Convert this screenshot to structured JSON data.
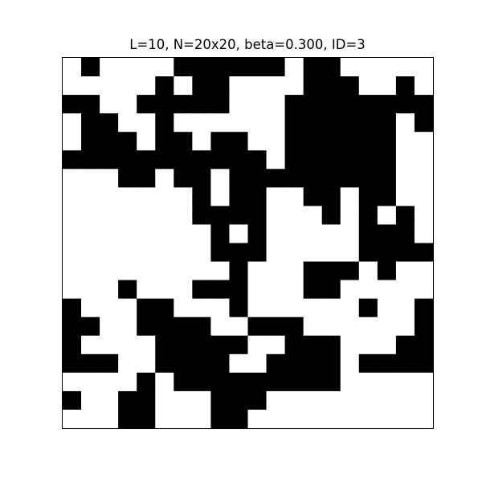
{
  "chart_data": {
    "type": "heatmap",
    "title": "L=10, N=20x20, beta=0.300, ID=3",
    "xlabel": "",
    "ylabel": "",
    "rows": 20,
    "cols": 20,
    "value_colors": {
      "0": "#ffffff",
      "1": "#000000"
    },
    "grid": [
      [
        0,
        1,
        0,
        0,
        0,
        0,
        1,
        1,
        1,
        1,
        1,
        1,
        0,
        1,
        1,
        0,
        0,
        0,
        0,
        0
      ],
      [
        0,
        0,
        0,
        0,
        0,
        1,
        0,
        1,
        1,
        0,
        0,
        0,
        0,
        1,
        1,
        1,
        0,
        0,
        1,
        0
      ],
      [
        1,
        1,
        0,
        0,
        1,
        1,
        1,
        1,
        1,
        0,
        0,
        0,
        1,
        1,
        1,
        1,
        1,
        1,
        1,
        1
      ],
      [
        0,
        1,
        1,
        0,
        0,
        1,
        0,
        0,
        0,
        0,
        0,
        0,
        1,
        1,
        1,
        1,
        1,
        1,
        0,
        1
      ],
      [
        0,
        1,
        1,
        1,
        0,
        1,
        1,
        0,
        1,
        1,
        0,
        0,
        1,
        1,
        1,
        1,
        1,
        1,
        0,
        0
      ],
      [
        1,
        1,
        1,
        1,
        1,
        1,
        1,
        1,
        1,
        1,
        1,
        0,
        1,
        1,
        1,
        1,
        1,
        1,
        0,
        0
      ],
      [
        0,
        0,
        0,
        1,
        1,
        0,
        1,
        1,
        0,
        1,
        1,
        1,
        1,
        1,
        1,
        1,
        1,
        1,
        0,
        0
      ],
      [
        0,
        0,
        0,
        0,
        0,
        0,
        0,
        1,
        0,
        1,
        1,
        0,
        0,
        1,
        1,
        0,
        1,
        1,
        0,
        0
      ],
      [
        0,
        0,
        0,
        0,
        0,
        0,
        0,
        1,
        1,
        1,
        1,
        0,
        0,
        0,
        1,
        0,
        1,
        0,
        1,
        0
      ],
      [
        0,
        0,
        0,
        0,
        0,
        0,
        0,
        0,
        1,
        0,
        1,
        0,
        0,
        0,
        0,
        0,
        1,
        1,
        1,
        0
      ],
      [
        0,
        0,
        0,
        0,
        0,
        0,
        0,
        0,
        1,
        1,
        1,
        0,
        0,
        0,
        0,
        0,
        1,
        1,
        1,
        1
      ],
      [
        0,
        0,
        0,
        0,
        0,
        0,
        0,
        0,
        0,
        1,
        0,
        0,
        0,
        1,
        1,
        1,
        0,
        1,
        0,
        0
      ],
      [
        0,
        0,
        0,
        1,
        0,
        0,
        0,
        1,
        1,
        1,
        0,
        0,
        0,
        1,
        1,
        0,
        0,
        0,
        0,
        0
      ],
      [
        1,
        0,
        0,
        0,
        1,
        1,
        0,
        0,
        0,
        1,
        0,
        0,
        0,
        0,
        0,
        0,
        1,
        0,
        0,
        1
      ],
      [
        1,
        1,
        0,
        0,
        1,
        1,
        1,
        1,
        0,
        0,
        1,
        1,
        1,
        0,
        0,
        0,
        0,
        0,
        0,
        1
      ],
      [
        1,
        0,
        0,
        0,
        0,
        1,
        1,
        1,
        1,
        1,
        0,
        0,
        1,
        1,
        1,
        0,
        0,
        0,
        1,
        1
      ],
      [
        1,
        1,
        1,
        0,
        0,
        1,
        1,
        1,
        1,
        0,
        0,
        1,
        1,
        1,
        1,
        0,
        1,
        1,
        1,
        1
      ],
      [
        0,
        0,
        0,
        0,
        1,
        0,
        1,
        1,
        1,
        1,
        1,
        1,
        1,
        1,
        1,
        0,
        0,
        0,
        0,
        0
      ],
      [
        1,
        0,
        0,
        1,
        1,
        0,
        0,
        0,
        1,
        1,
        1,
        0,
        0,
        0,
        0,
        0,
        0,
        0,
        0,
        0
      ],
      [
        0,
        0,
        0,
        1,
        1,
        0,
        0,
        0,
        1,
        1,
        0,
        0,
        0,
        0,
        0,
        0,
        0,
        0,
        0,
        0
      ]
    ]
  }
}
